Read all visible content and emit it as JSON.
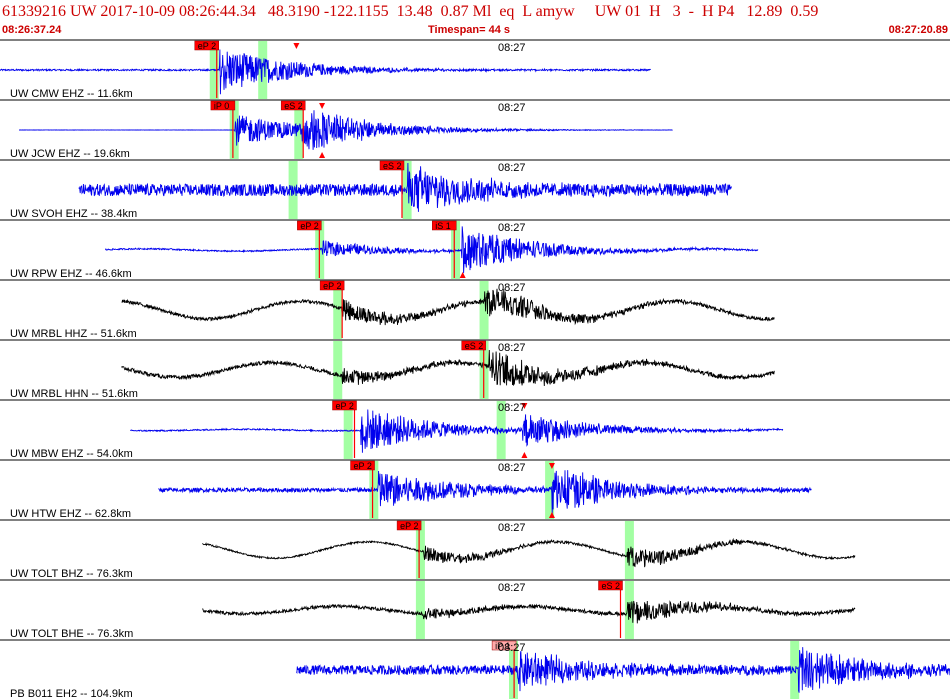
{
  "header": {
    "title": "61339216 UW 2017-10-09 08:26:44.34   48.3190 -122.1155  13.48  0.87 Ml  eq  L amyw     UW 01  H   3  -  H P4   12.89  0.59",
    "start_time": "08:26:37.24",
    "timespan": "Timespan=  44 s",
    "end_time": "08:27:20.89"
  },
  "colors": {
    "header_text": "#cc0000",
    "blue_trace": "#0000ee",
    "black_trace": "#000000",
    "pick_box": "#ff0000",
    "pick_box_light": "#ffaaaa",
    "phase_window": "#99ff99"
  },
  "traces": [
    {
      "label": "UW CMW EHZ -- 11.6km",
      "minute_label": "08:27",
      "color": "blue",
      "start": 0.0,
      "end": 0.685,
      "noise": 0.06,
      "swing": 0.0,
      "phases": [
        {
          "t": 0.231,
          "amp": 0.9
        }
      ],
      "picks": [
        {
          "label": "eP 2",
          "t": 0.205,
          "box": "red"
        }
      ],
      "windows": [
        0.225,
        0.276
      ],
      "triangles": [
        {
          "t": 0.312,
          "dir": "down"
        }
      ]
    },
    {
      "label": "UW JCW EHZ -- 19.6km",
      "minute_label": "08:27",
      "color": "blue",
      "start": 0.02,
      "end": 0.708,
      "noise": 0.01,
      "swing": 0.0,
      "phases": [
        {
          "t": 0.247,
          "amp": 0.6
        },
        {
          "t": 0.318,
          "amp": 0.8
        }
      ],
      "picks": [
        {
          "label": "iP 0",
          "t": 0.222,
          "box": "red"
        },
        {
          "label": "eS 2",
          "t": 0.296,
          "box": "red"
        }
      ],
      "windows": [
        0.246,
        0.314
      ],
      "triangles": [
        {
          "t": 0.339,
          "dir": "down"
        },
        {
          "t": 0.339,
          "dir": "up"
        }
      ]
    },
    {
      "label": "UW SVOH EHZ -- 38.4km",
      "minute_label": "08:27",
      "color": "blue",
      "start": 0.083,
      "end": 0.77,
      "noise": 0.45,
      "swing": 0.0,
      "phases": [
        {
          "t": 0.428,
          "amp": 0.9
        }
      ],
      "picks": [
        {
          "label": "eS 2",
          "t": 0.4,
          "box": "red"
        }
      ],
      "windows": [
        0.308,
        0.428
      ],
      "triangles": []
    },
    {
      "label": "UW RPW EHZ -- 46.6km",
      "minute_label": "08:27",
      "color": "blue",
      "start": 0.111,
      "end": 0.798,
      "noise": 0.05,
      "swing": 0.08,
      "phases": [
        {
          "t": 0.339,
          "amp": 0.3
        },
        {
          "t": 0.486,
          "amp": 0.9
        }
      ],
      "picks": [
        {
          "label": "eP 2",
          "t": 0.313,
          "box": "red"
        },
        {
          "label": "iS 1",
          "t": 0.455,
          "box": "red"
        }
      ],
      "windows": [
        0.336,
        0.479
      ],
      "triangles": [
        {
          "t": 0.487,
          "dir": "up"
        }
      ]
    },
    {
      "label": "UW MRBL HHZ -- 51.6km",
      "minute_label": "08:27",
      "color": "black",
      "start": 0.128,
      "end": 0.815,
      "noise": 0.12,
      "swing": 0.6,
      "phases": [
        {
          "t": 0.36,
          "amp": 0.4
        },
        {
          "t": 0.51,
          "amp": 0.6
        }
      ],
      "picks": [
        {
          "label": "eP 2",
          "t": 0.337,
          "box": "red"
        }
      ],
      "windows": [
        0.355,
        0.509
      ],
      "triangles": []
    },
    {
      "label": "UW MRBL HHN -- 51.6km",
      "minute_label": "08:27",
      "color": "black",
      "start": 0.128,
      "end": 0.815,
      "noise": 0.14,
      "swing": 0.5,
      "phases": [
        {
          "t": 0.36,
          "amp": 0.3
        },
        {
          "t": 0.515,
          "amp": 0.7
        }
      ],
      "picks": [
        {
          "label": "eS 2",
          "t": 0.486,
          "box": "red"
        }
      ],
      "windows": [
        0.355,
        0.509
      ],
      "triangles": []
    },
    {
      "label": "UW MBW EHZ -- 54.0km",
      "minute_label": "08:27",
      "color": "blue",
      "start": 0.137,
      "end": 0.824,
      "noise": 0.05,
      "swing": 0.05,
      "phases": [
        {
          "t": 0.38,
          "amp": 0.9
        },
        {
          "t": 0.55,
          "amp": 0.6
        }
      ],
      "picks": [
        {
          "label": "eP 2",
          "t": 0.35,
          "box": "red"
        }
      ],
      "windows": [
        0.366,
        0.527
      ],
      "triangles": [
        {
          "t": 0.552,
          "dir": "down"
        },
        {
          "t": 0.552,
          "dir": "up"
        }
      ]
    },
    {
      "label": "UW HTW EHZ -- 62.8km",
      "minute_label": "08:27",
      "color": "blue",
      "start": 0.167,
      "end": 0.854,
      "noise": 0.15,
      "swing": 0.0,
      "phases": [
        {
          "t": 0.397,
          "amp": 0.8
        },
        {
          "t": 0.58,
          "amp": 0.9
        }
      ],
      "picks": [
        {
          "label": "eP 2",
          "t": 0.369,
          "box": "red"
        }
      ],
      "windows": [
        0.393,
        0.578
      ],
      "triangles": [
        {
          "t": 0.581,
          "dir": "down"
        },
        {
          "t": 0.581,
          "dir": "up"
        }
      ]
    },
    {
      "label": "UW TOLT BHZ -- 76.3km",
      "minute_label": "08:27",
      "color": "black",
      "start": 0.213,
      "end": 0.9,
      "noise": 0.06,
      "swing": 0.55,
      "phases": [
        {
          "t": 0.445,
          "amp": 0.3
        },
        {
          "t": 0.66,
          "amp": 0.4
        }
      ],
      "picks": [
        {
          "label": "eP 2",
          "t": 0.418,
          "box": "red"
        }
      ],
      "windows": [
        0.442,
        0.662
      ],
      "triangles": []
    },
    {
      "label": "UW TOLT BHE -- 76.3km",
      "minute_label": "08:27",
      "color": "black",
      "start": 0.213,
      "end": 0.9,
      "noise": 0.12,
      "swing": 0.25,
      "phases": [
        {
          "t": 0.445,
          "amp": 0.2
        },
        {
          "t": 0.66,
          "amp": 0.5
        }
      ],
      "picks": [
        {
          "label": "eS 2",
          "t": 0.63,
          "box": "red"
        }
      ],
      "windows": [
        0.442,
        0.662
      ],
      "triangles": []
    },
    {
      "label": "PB B011 EH2 -- 104.9km",
      "minute_label": "08:27",
      "color": "blue",
      "start": 0.312,
      "end": 1.0,
      "noise": 0.35,
      "swing": 0.0,
      "phases": [
        {
          "t": 0.545,
          "amp": 0.7
        },
        {
          "t": 0.84,
          "amp": 0.9
        }
      ],
      "picks": [
        {
          "label": "iP 1",
          "t": 0.518,
          "box": "light"
        }
      ],
      "windows": [
        0.54,
        0.836
      ],
      "triangles": []
    }
  ]
}
